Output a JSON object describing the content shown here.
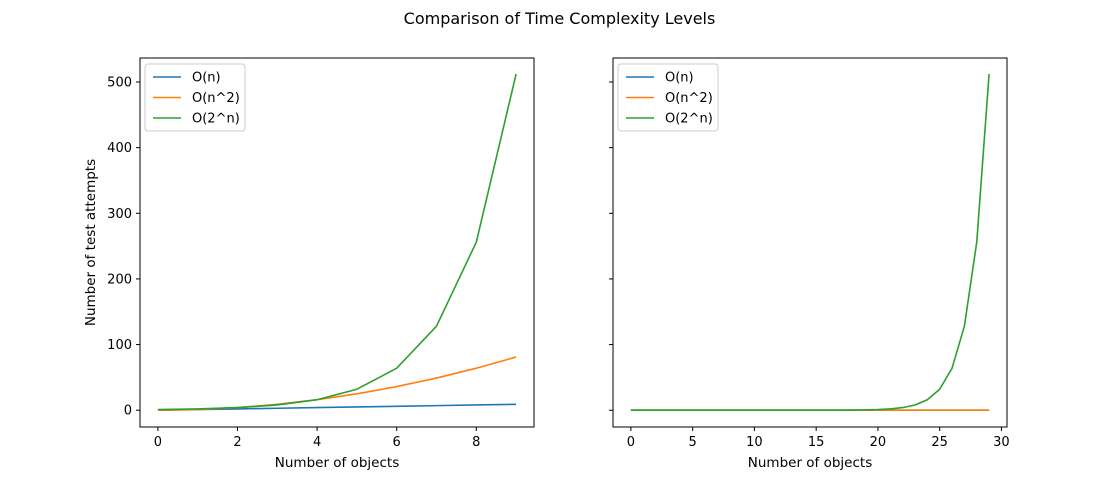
{
  "figure": {
    "title": "Comparison of Time Complexity Levels"
  },
  "chart_data": [
    {
      "type": "line",
      "title": "",
      "xlabel": "Number of objects",
      "ylabel": "Number of test attempts",
      "xlim": [
        -0.45,
        9.45
      ],
      "ylim": [
        -25.55,
        536.55
      ],
      "xticks": [
        0,
        2,
        4,
        6,
        8
      ],
      "yticks": [
        0,
        100,
        200,
        300,
        400,
        500
      ],
      "show_y_tick_labels": true,
      "grid": false,
      "legend_position": "top-left",
      "x": [
        0,
        1,
        2,
        3,
        4,
        5,
        6,
        7,
        8,
        9
      ],
      "series": [
        {
          "name": "O(n)",
          "color": "#1f77b4",
          "values": [
            0,
            1,
            2,
            3,
            4,
            5,
            6,
            7,
            8,
            9
          ]
        },
        {
          "name": "O(n^2)",
          "color": "#ff7f0e",
          "values": [
            0,
            1,
            4,
            9,
            16,
            25,
            36,
            49,
            64,
            81
          ]
        },
        {
          "name": "O(2^n)",
          "color": "#2ca02c",
          "values": [
            1,
            2,
            4,
            8,
            16,
            32,
            64,
            128,
            256,
            512
          ]
        }
      ]
    },
    {
      "type": "line",
      "title": "",
      "xlabel": "Number of objects",
      "ylabel": "",
      "xlim": [
        -1.45,
        30.45
      ],
      "ylim": [
        -25.55,
        536.55
      ],
      "xticks": [
        0,
        5,
        10,
        15,
        20,
        25,
        30
      ],
      "yticks": [
        0,
        100,
        200,
        300,
        400,
        500
      ],
      "show_y_tick_labels": false,
      "grid": false,
      "legend_position": "top-left",
      "x": [
        0,
        1,
        2,
        3,
        4,
        5,
        6,
        7,
        8,
        9,
        10,
        11,
        12,
        13,
        14,
        15,
        16,
        17,
        18,
        19,
        20,
        21,
        22,
        23,
        24,
        25,
        26,
        27,
        28,
        29
      ],
      "series": [
        {
          "name": "O(n)",
          "color": "#1f77b4",
          "values": [
            0,
            0,
            0,
            0,
            0,
            0,
            0,
            0,
            0,
            0,
            0,
            0,
            0,
            0,
            0,
            0,
            0,
            0,
            0,
            0,
            0,
            0,
            0,
            0,
            0,
            0,
            0,
            0,
            0,
            0
          ]
        },
        {
          "name": "O(n^2)",
          "color": "#ff7f0e",
          "values": [
            0,
            0,
            0,
            0,
            0,
            0,
            0,
            0,
            0,
            0,
            0,
            0,
            0,
            0,
            0,
            0,
            0,
            0,
            0,
            0,
            0,
            0,
            0,
            0,
            0,
            0,
            0,
            0,
            0,
            0
          ]
        },
        {
          "name": "O(2^n)",
          "color": "#2ca02c",
          "values": [
            0,
            0,
            0,
            0,
            0,
            0,
            0,
            0,
            0,
            0,
            0,
            0,
            0,
            0,
            0,
            0,
            0,
            0.125,
            0.25,
            0.5,
            1,
            2,
            4,
            8,
            16,
            32,
            64,
            128,
            256,
            512
          ]
        }
      ]
    }
  ]
}
